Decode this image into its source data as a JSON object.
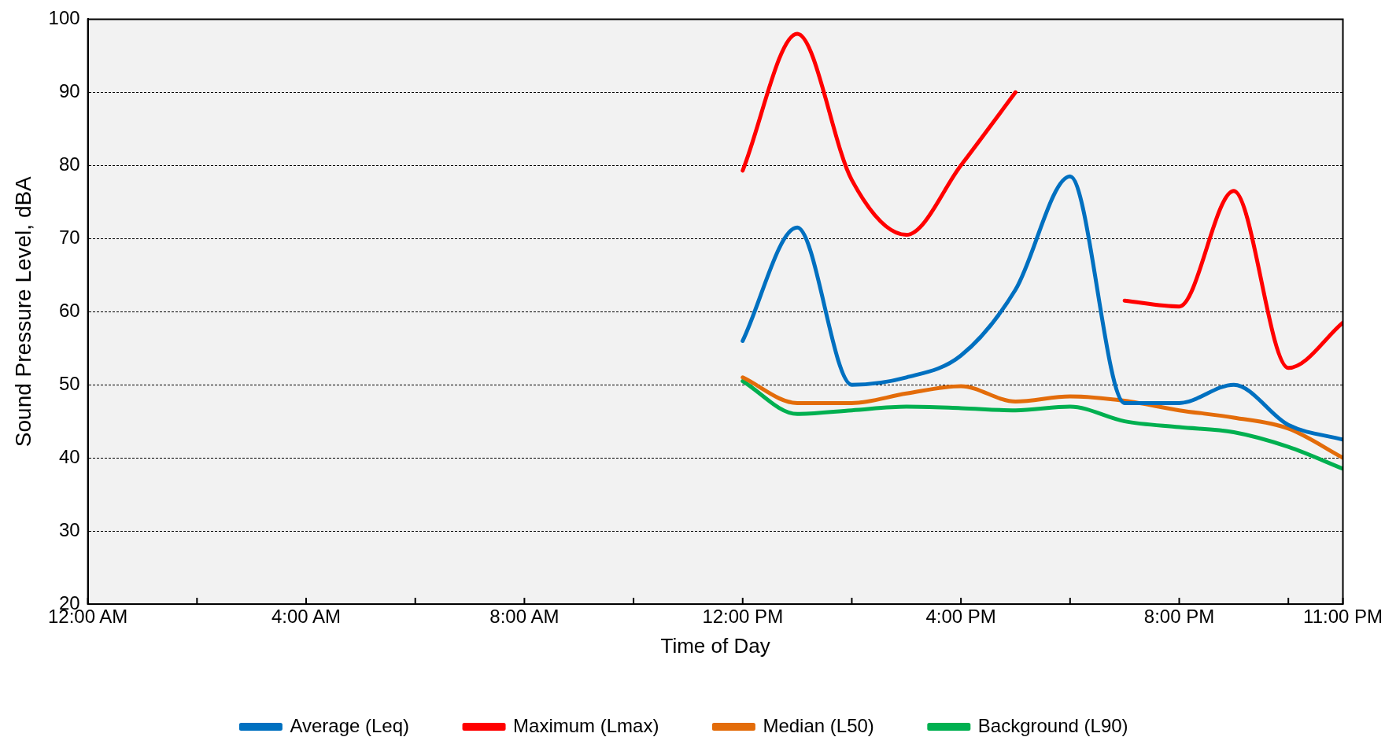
{
  "chart_data": {
    "type": "line",
    "xlabel": "Time of Day",
    "ylabel": "Sound Pressure Level, dBA",
    "x": [
      12,
      13,
      14,
      15,
      16,
      17,
      18,
      19,
      20,
      21,
      22,
      23
    ],
    "xlim": [
      0,
      23
    ],
    "xticks": [
      {
        "value": 0,
        "label": "12:00 AM"
      },
      {
        "value": 2,
        "label": null
      },
      {
        "value": 4,
        "label": "4:00 AM"
      },
      {
        "value": 6,
        "label": null
      },
      {
        "value": 8,
        "label": "8:00 AM"
      },
      {
        "value": 10,
        "label": null
      },
      {
        "value": 12,
        "label": "12:00 PM"
      },
      {
        "value": 14,
        "label": null
      },
      {
        "value": 16,
        "label": "4:00 PM"
      },
      {
        "value": 18,
        "label": null
      },
      {
        "value": 20,
        "label": "8:00 PM"
      },
      {
        "value": 22,
        "label": null
      },
      {
        "value": 23,
        "label": "11:00 PM"
      }
    ],
    "ylim": [
      20,
      100
    ],
    "yticks": [
      20,
      30,
      40,
      50,
      60,
      70,
      80,
      90,
      100
    ],
    "grid": "y",
    "legend": "bottom",
    "marker": "none",
    "series": [
      {
        "name": "Average (Leq)",
        "color": "#0070c0",
        "values": [
          56,
          71.5,
          50,
          51,
          54,
          63,
          78.5,
          47.5,
          47.5,
          50,
          44.5,
          42.5
        ]
      },
      {
        "name": "Maximum (Lmax)",
        "color": "#ff0000",
        "values": [
          79.3,
          98,
          78,
          70.5,
          80,
          90,
          null,
          61.5,
          60.7,
          76.5,
          52.3,
          58.5
        ]
      },
      {
        "name": "Median (L50)",
        "color": "#e36c0a",
        "values": [
          51,
          47.5,
          47.5,
          48.8,
          49.8,
          47.7,
          48.4,
          47.8,
          46.5,
          45.5,
          44,
          40
        ]
      },
      {
        "name": "Background (L90)",
        "color": "#00b050",
        "values": [
          50.5,
          46,
          46.5,
          47,
          46.8,
          46.5,
          47,
          45,
          44.2,
          43.5,
          41.5,
          38.5
        ]
      }
    ]
  }
}
